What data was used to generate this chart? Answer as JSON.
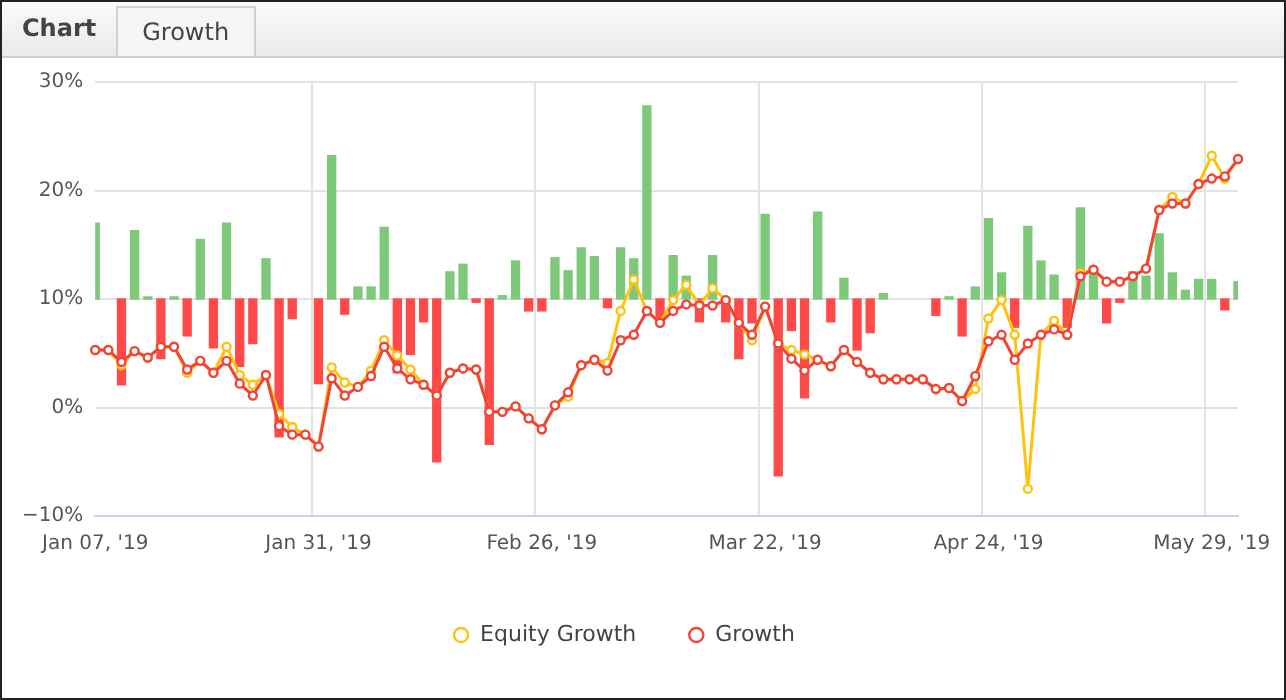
{
  "chart_data": {
    "type": "line",
    "title": "Chart",
    "subtitle": "Growth",
    "categories": [
      "Jan 07, '19",
      null,
      null,
      null,
      null,
      null,
      null,
      null,
      null,
      null,
      null,
      null,
      null,
      null,
      null,
      null,
      null,
      "Jan 31, '19",
      null,
      null,
      null,
      null,
      null,
      null,
      null,
      null,
      null,
      null,
      null,
      null,
      null,
      null,
      null,
      null,
      "Feb 26, '19",
      null,
      null,
      null,
      null,
      null,
      null,
      null,
      null,
      null,
      null,
      null,
      null,
      null,
      null,
      null,
      null,
      "Mar 22, '19",
      null,
      null,
      null,
      null,
      null,
      null,
      null,
      null,
      null,
      null,
      null,
      null,
      null,
      null,
      null,
      null,
      "Apr 24, '19",
      null,
      null,
      null,
      null,
      null,
      null,
      null,
      null,
      null,
      null,
      null,
      null,
      null,
      null,
      null,
      null,
      "May 29, '19",
      null,
      null
    ],
    "series": [
      {
        "type": "bar",
        "base": [
          10,
          null,
          10,
          10,
          10,
          10,
          10,
          10,
          10,
          10,
          10,
          10,
          10,
          10,
          10,
          10,
          null,
          10,
          10,
          10,
          10,
          10,
          10,
          10,
          10,
          10,
          10,
          10,
          10,
          10,
          10,
          10,
          10,
          10,
          10,
          10,
          10,
          10,
          10,
          10,
          10,
          10,
          10,
          10,
          10,
          10,
          10,
          10,
          10,
          10,
          10,
          10,
          10,
          10,
          10,
          10,
          10,
          10,
          10,
          10,
          10,
          null,
          null,
          null,
          10,
          10,
          10,
          10,
          10,
          10,
          10,
          10,
          10,
          10,
          10,
          10,
          10,
          10,
          10,
          10,
          10,
          10,
          10,
          10,
          10,
          10,
          10,
          10
        ],
        "values": [
          7.0,
          null,
          -7.9,
          6.3,
          0.2,
          -5.5,
          0.2,
          -3.4,
          5.5,
          -4.5,
          7.0,
          -6.2,
          -4.1,
          3.7,
          -12.7,
          -1.8,
          null,
          -7.8,
          13.2,
          -1.4,
          1.1,
          1.1,
          6.6,
          -6.8,
          -5.1,
          -2.1,
          -15.0,
          2.5,
          3.2,
          -0.3,
          -13.4,
          0.3,
          3.5,
          -1.1,
          -1.1,
          3.8,
          2.6,
          4.7,
          3.9,
          -0.8,
          4.7,
          3.7,
          17.8,
          -2.1,
          4.0,
          2.1,
          -2.1,
          4.0,
          -2.1,
          -5.5,
          -2.2,
          7.8,
          -16.3,
          -2.9,
          -9.1,
          8.0,
          -2.1,
          1.9,
          -4.7,
          -3.1,
          0.5,
          null,
          null,
          null,
          -1.5,
          0.2,
          -3.4,
          1.1,
          7.4,
          2.4,
          -2.6,
          6.7,
          3.5,
          2.2,
          -2.6,
          8.4,
          2.5,
          -2.2,
          -0.3,
          2.5,
          2.1,
          6.0,
          2.4,
          0.8,
          1.8,
          1.8,
          -1.0,
          1.6
        ],
        "colors": [
          "#7ec87a",
          "#7ec87a",
          "#ff4a4a",
          "#7ec87a",
          "#7ec87a",
          "#ff4a4a",
          "#7ec87a",
          "#ff4a4a",
          "#7ec87a",
          "#ff4a4a",
          "#7ec87a",
          "#ff4a4a",
          "#ff4a4a",
          "#7ec87a",
          "#ff4a4a",
          "#ff4a4a",
          "#7ec87a",
          "#ff4a4a",
          "#7ec87a",
          "#ff4a4a",
          "#7ec87a",
          "#7ec87a",
          "#7ec87a",
          "#ff4a4a",
          "#ff4a4a",
          "#ff4a4a",
          "#ff4a4a",
          "#7ec87a",
          "#7ec87a",
          "#ff4a4a",
          "#ff4a4a",
          "#7ec87a",
          "#7ec87a",
          "#ff4a4a",
          "#ff4a4a",
          "#7ec87a",
          "#7ec87a",
          "#7ec87a",
          "#7ec87a",
          "#ff4a4a",
          "#7ec87a",
          "#7ec87a",
          "#7ec87a",
          "#ff4a4a",
          "#7ec87a",
          "#7ec87a",
          "#ff4a4a",
          "#7ec87a",
          "#ff4a4a",
          "#ff4a4a",
          "#ff4a4a",
          "#7ec87a",
          "#ff4a4a",
          "#ff4a4a",
          "#ff4a4a",
          "#7ec87a",
          "#ff4a4a",
          "#7ec87a",
          "#ff4a4a",
          "#ff4a4a",
          "#7ec87a",
          "#7ec87a",
          "#7ec87a",
          "#7ec87a",
          "#ff4a4a",
          "#7ec87a",
          "#ff4a4a",
          "#7ec87a",
          "#7ec87a",
          "#7ec87a",
          "#ff4a4a",
          "#7ec87a",
          "#7ec87a",
          "#7ec87a",
          "#ff4a4a",
          "#7ec87a",
          "#7ec87a",
          "#ff4a4a",
          "#ff4a4a",
          "#7ec87a",
          "#7ec87a",
          "#7ec87a",
          "#7ec87a",
          "#7ec87a",
          "#7ec87a",
          "#7ec87a",
          "#ff4a4a",
          "#7ec87a"
        ]
      },
      {
        "name": "Equity Growth",
        "color": "#ffc20e",
        "values": [
          5.3,
          5.3,
          3.9,
          5.2,
          4.6,
          5.6,
          5.6,
          3.2,
          4.3,
          3.2,
          5.6,
          3.0,
          2.1,
          3.0,
          -0.6,
          -1.8,
          -2.5,
          -3.6,
          3.7,
          2.3,
          1.9,
          3.4,
          6.2,
          4.8,
          3.5,
          2.1,
          1.1,
          3.2,
          3.6,
          3.5,
          -0.4,
          -0.4,
          0.1,
          -1.0,
          -2.0,
          0.2,
          1.0,
          3.9,
          4.4,
          4.1,
          8.9,
          11.8,
          8.9,
          7.8,
          9.9,
          11.3,
          9.4,
          11.0,
          9.9,
          7.8,
          6.2,
          9.3,
          5.9,
          5.3,
          4.9,
          4.4,
          3.8,
          5.3,
          4.2,
          3.2,
          2.6,
          2.6,
          2.6,
          2.6,
          1.7,
          1.8,
          0.6,
          1.7,
          8.2,
          9.9,
          6.7,
          -7.5,
          6.7,
          8.0,
          6.7,
          12.4,
          12.7,
          11.6,
          11.6,
          12.1,
          12.8,
          18.2,
          19.4,
          18.8,
          20.6,
          23.2,
          21.1,
          22.9
        ]
      },
      {
        "name": "Growth",
        "color": "#f0443a",
        "values": [
          5.3,
          5.3,
          4.2,
          5.2,
          4.6,
          5.6,
          5.6,
          3.5,
          4.3,
          3.2,
          4.3,
          2.2,
          1.1,
          3.0,
          -1.7,
          -2.5,
          -2.5,
          -3.6,
          2.7,
          1.1,
          1.9,
          2.9,
          5.6,
          3.6,
          2.6,
          2.1,
          1.1,
          3.2,
          3.6,
          3.5,
          -0.4,
          -0.4,
          0.1,
          -1.0,
          -2.0,
          0.2,
          1.4,
          3.9,
          4.4,
          3.4,
          6.2,
          6.7,
          8.9,
          7.8,
          8.9,
          9.5,
          9.4,
          9.4,
          9.9,
          7.8,
          6.7,
          9.3,
          5.9,
          4.5,
          3.4,
          4.4,
          3.8,
          5.3,
          4.2,
          3.2,
          2.6,
          2.6,
          2.6,
          2.6,
          1.7,
          1.8,
          0.6,
          2.9,
          6.1,
          6.7,
          4.4,
          5.9,
          6.7,
          7.2,
          6.7,
          12.1,
          12.7,
          11.6,
          11.6,
          12.1,
          12.8,
          18.2,
          18.8,
          18.8,
          20.6,
          21.1,
          21.3,
          22.9
        ]
      }
    ],
    "ylim": [
      -10,
      30
    ],
    "yticks": [
      {
        "value": -10,
        "label": "−10%"
      },
      {
        "value": 0,
        "label": "0%"
      },
      {
        "value": 10,
        "label": "10%"
      },
      {
        "value": 20,
        "label": "20%"
      },
      {
        "value": 30,
        "label": "30%"
      }
    ],
    "grid": true,
    "legend": "bottom",
    "marker": "circle",
    "line_style": "solid"
  }
}
